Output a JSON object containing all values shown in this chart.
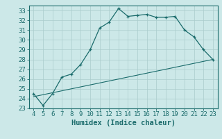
{
  "xlabel": "Humidex (Indice chaleur)",
  "background_color": "#cce8e8",
  "grid_color": "#aacccc",
  "line_color": "#1a6b6b",
  "x_data": [
    4,
    5,
    6,
    7,
    8,
    9,
    10,
    11,
    12,
    13,
    14,
    15,
    16,
    17,
    18,
    19,
    20,
    21,
    22,
    23
  ],
  "y_data": [
    24.5,
    23.3,
    24.5,
    26.2,
    26.5,
    27.5,
    29.0,
    31.2,
    31.8,
    33.2,
    32.4,
    32.5,
    32.6,
    32.3,
    32.3,
    32.4,
    31.0,
    30.3,
    29.0,
    28.0
  ],
  "trend_x": [
    4,
    23
  ],
  "trend_y": [
    24.2,
    28.0
  ],
  "xlim": [
    3.5,
    23.5
  ],
  "ylim": [
    23.0,
    33.5
  ],
  "yticks": [
    23,
    24,
    25,
    26,
    27,
    28,
    29,
    30,
    31,
    32,
    33
  ],
  "xticks": [
    4,
    5,
    6,
    7,
    8,
    9,
    10,
    11,
    12,
    13,
    14,
    15,
    16,
    17,
    18,
    19,
    20,
    21,
    22,
    23
  ],
  "tick_fontsize": 6.5,
  "xlabel_fontsize": 7.5
}
